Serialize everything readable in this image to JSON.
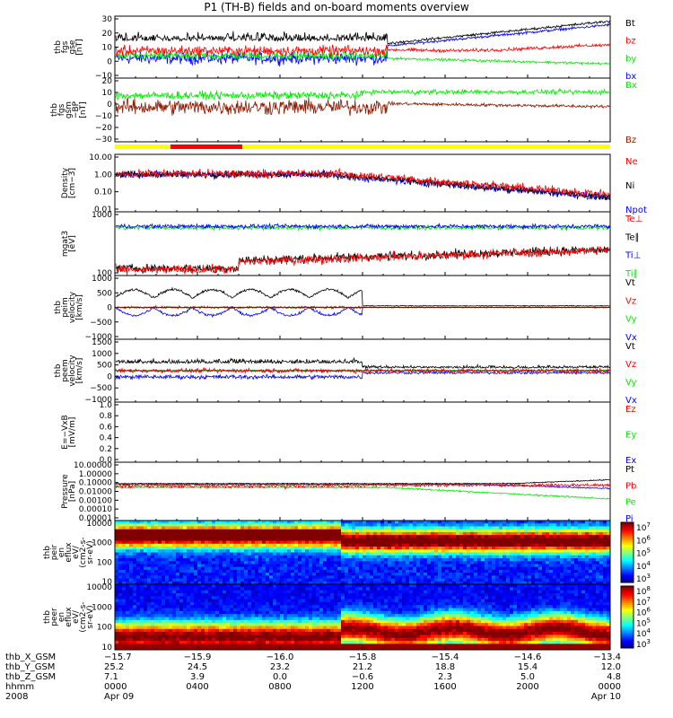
{
  "title": "P1 (TH-B) fields and on-board moments overview",
  "colors": {
    "black": "#000000",
    "red": "#ff0000",
    "green": "#00ee00",
    "blue": "#0000ff",
    "darkred": "#8b1a00",
    "yellow": "#ffff00"
  },
  "chart_data": [
    {
      "type": "line",
      "ylabel": [
        "thb",
        "fgs",
        "gse",
        "[nT]"
      ],
      "ylim": [
        -20,
        30
      ],
      "yticks": [
        "30",
        "20",
        "10",
        "0",
        "−10"
      ],
      "series": [
        {
          "name": "Bt",
          "color": "black"
        },
        {
          "name": "bz",
          "color": "red"
        },
        {
          "name": "by",
          "color": "green"
        },
        {
          "name": "bx",
          "color": "blue"
        }
      ]
    },
    {
      "type": "line",
      "ylabel": [
        "thb",
        "fgs",
        "gsm",
        "−BP",
        "[nT]"
      ],
      "ylim": [
        -35,
        20
      ],
      "yticks": [
        "20",
        "10",
        "0",
        "−10",
        "−20",
        "−30"
      ],
      "series": [
        {
          "name": "Bx",
          "color": "green"
        },
        {
          "name": "Bz",
          "color": "darkred"
        }
      ]
    },
    {
      "type": "line",
      "ylabel": [
        "Density",
        "[cm−3]"
      ],
      "scale": "log",
      "ylim": [
        0.01,
        20
      ],
      "yticks": [
        "10.00",
        "1.00",
        "0.10",
        "0.01"
      ],
      "series": [
        {
          "name": "Ne",
          "color": "red"
        },
        {
          "name": "Ni",
          "color": "black"
        },
        {
          "name": "Npot",
          "color": "blue"
        }
      ]
    },
    {
      "type": "line",
      "ylabel": [
        "mgat3",
        "[eV]"
      ],
      "scale": "log",
      "ylim": [
        30,
        8000
      ],
      "yticks": [
        "1000",
        "100"
      ],
      "series": [
        {
          "name": "Te⊥",
          "color": "red"
        },
        {
          "name": "Te∥",
          "color": "black"
        },
        {
          "name": "Ti⊥",
          "color": "blue"
        },
        {
          "name": "Ti∥",
          "color": "green"
        }
      ]
    },
    {
      "type": "line",
      "ylabel": [
        "thb",
        "peim",
        "velocity",
        "[km/s]"
      ],
      "ylim": [
        -1000,
        1000
      ],
      "yticks": [
        "1000",
        "500",
        "0",
        "−500",
        "−1000"
      ],
      "series": [
        {
          "name": "Vt",
          "color": "black"
        },
        {
          "name": "Vz",
          "color": "red"
        },
        {
          "name": "Vy",
          "color": "green"
        },
        {
          "name": "Vx",
          "color": "blue"
        }
      ]
    },
    {
      "type": "line",
      "ylabel": [
        "thb",
        "peem",
        "velocity",
        "[km/s]"
      ],
      "ylim": [
        -1500,
        1500
      ],
      "yticks": [
        "1500",
        "1000",
        "500",
        "0",
        "−500",
        "−1000"
      ],
      "series": [
        {
          "name": "Vt",
          "color": "black"
        },
        {
          "name": "Vz",
          "color": "red"
        },
        {
          "name": "Vy",
          "color": "green"
        },
        {
          "name": "Vx",
          "color": "blue"
        }
      ]
    },
    {
      "type": "line",
      "ylabel": [
        "E=−VxB",
        "[mV/m]"
      ],
      "ylim": [
        0,
        1
      ],
      "yticks": [
        "1.0",
        "0.8",
        "0.6",
        "0.4",
        "0.2",
        "0.0"
      ],
      "series": [
        {
          "name": "Ez",
          "color": "red"
        },
        {
          "name": "Ey",
          "color": "green"
        },
        {
          "name": "Ex",
          "color": "blue"
        }
      ]
    },
    {
      "type": "line",
      "ylabel": [
        "Pressure",
        "[nPa]"
      ],
      "scale": "log",
      "ylim": [
        1e-05,
        10
      ],
      "yticks": [
        "10.00000",
        "1.00000",
        "0.10000",
        "0.01000",
        "0.00100",
        "0.00010",
        "0.00001"
      ],
      "series": [
        {
          "name": "Pt",
          "color": "black"
        },
        {
          "name": "Pb",
          "color": "red"
        },
        {
          "name": "Pe",
          "color": "green"
        },
        {
          "name": "Pi",
          "color": "blue"
        }
      ]
    },
    {
      "type": "heatmap",
      "ylabel": [
        "thb",
        "peir",
        "en",
        "eflux",
        "eV/",
        "(cm2-s-",
        "sr-eV)"
      ],
      "scale": "log",
      "ylim": [
        5,
        20000
      ],
      "yticks": [
        "10000",
        "1000",
        "100",
        "10"
      ],
      "colorbar": {
        "labels": [
          "10^7",
          "10^6",
          "10^5",
          "10^4",
          "10^3"
        ]
      }
    },
    {
      "type": "heatmap",
      "ylabel": [
        "thb",
        "peer",
        "en",
        "eflux",
        "eV/",
        "(cm2-s-",
        "sr-eV)"
      ],
      "scale": "log",
      "ylim": [
        8,
        20000
      ],
      "yticks": [
        "10000",
        "1000",
        "100",
        "10"
      ],
      "colorbar": {
        "labels": [
          "10^8",
          "10^7",
          "10^6",
          "10^5",
          "10^4",
          "10^3"
        ]
      }
    }
  ],
  "xaxis": {
    "row_labels": [
      "thb_X_GSM",
      "thb_Y_GSM",
      "thb_Z_GSM",
      "hhmm",
      "2008"
    ],
    "ticks": [
      {
        "x": "−15.7",
        "y": "25.2",
        "z": "7.1",
        "hhmm": "0000",
        "date": "Apr 09"
      },
      {
        "x": "−15.9",
        "y": "24.5",
        "z": "3.9",
        "hhmm": "0400",
        "date": ""
      },
      {
        "x": "−16.0",
        "y": "23.2",
        "z": "0.0",
        "hhmm": "0800",
        "date": ""
      },
      {
        "x": "−15.8",
        "y": "21.2",
        "z": "−0.6",
        "hhmm": "1200",
        "date": ""
      },
      {
        "x": "−15.4",
        "y": "18.8",
        "z": "2.3",
        "hhmm": "1600",
        "date": ""
      },
      {
        "x": "−14.6",
        "y": "15.4",
        "z": "5.0",
        "hhmm": "2000",
        "date": ""
      },
      {
        "x": "−13.4",
        "y": "12.0",
        "z": "4.8",
        "hhmm": "0000",
        "date": "Apr 10"
      }
    ]
  }
}
